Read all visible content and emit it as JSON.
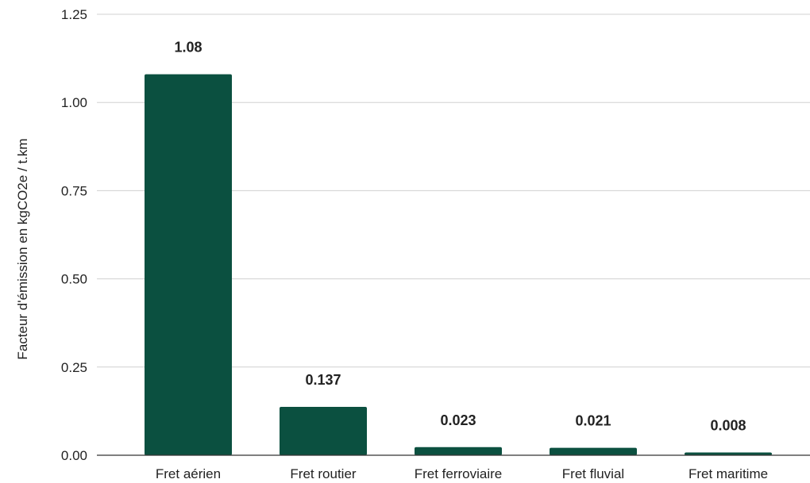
{
  "chart_data": {
    "type": "bar",
    "title": "",
    "xlabel": "",
    "ylabel": "Facteur d'émission en kgCO2e / t.km",
    "categories": [
      "Fret aérien",
      "Fret routier",
      "Fret ferroviaire",
      "Fret fluvial",
      "Fret maritime"
    ],
    "values": [
      1.08,
      0.137,
      0.023,
      0.021,
      0.008
    ],
    "data_labels": [
      "1.08",
      "0.137",
      "0.023",
      "0.021",
      "0.008"
    ],
    "ylim": [
      0,
      1.25
    ],
    "yticks": [
      0,
      0.25,
      0.5,
      0.75,
      1.0,
      1.25
    ],
    "ytick_labels": [
      "0.00",
      "0.25",
      "0.50",
      "0.75",
      "1.00",
      "1.25"
    ],
    "grid": true,
    "bar_color": "#0b5040",
    "legend": "none"
  }
}
